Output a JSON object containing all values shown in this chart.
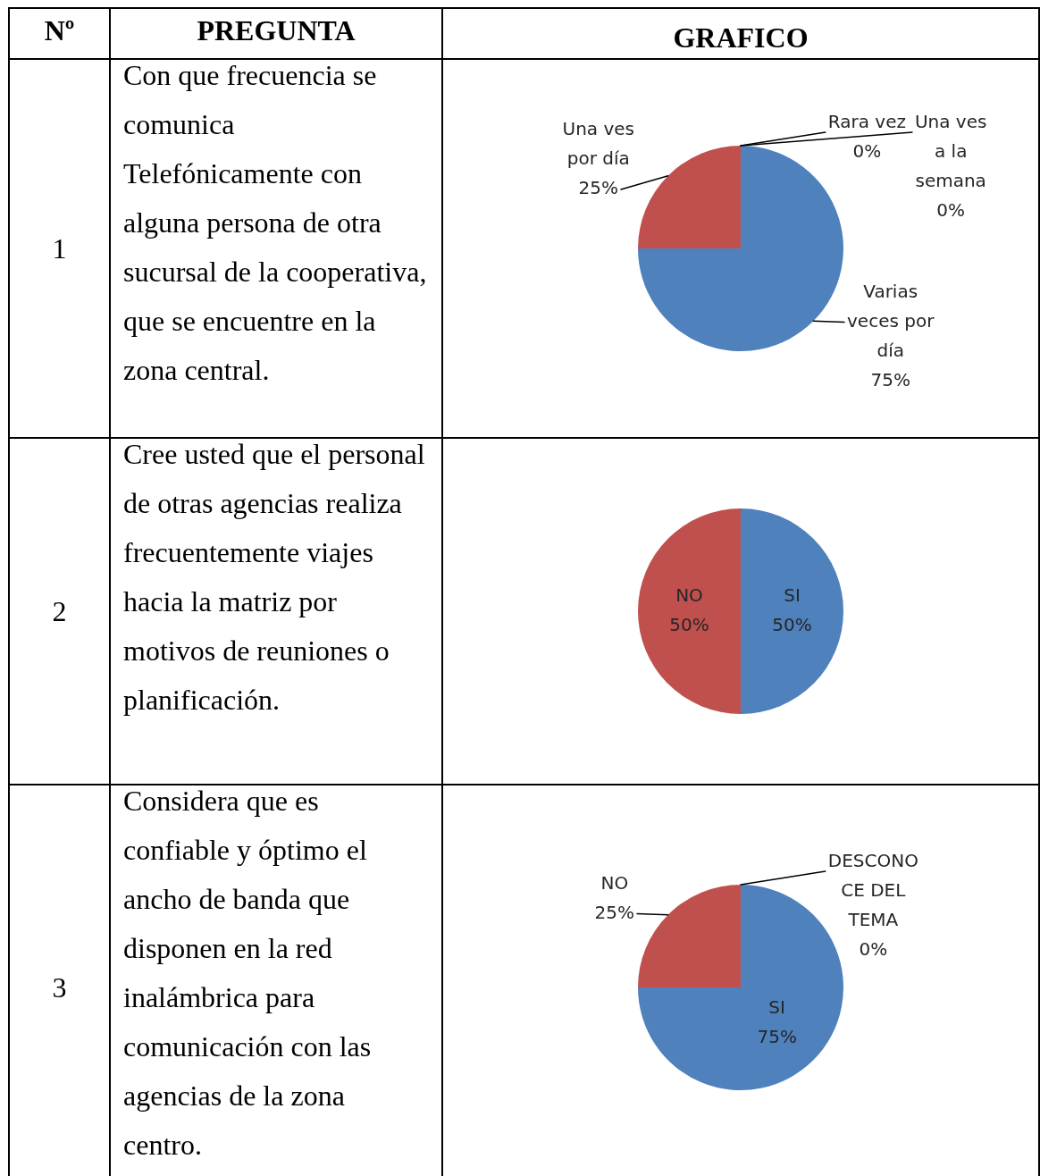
{
  "chart_data": [
    {
      "type": "pie",
      "title": "Con que frecuencia se comunica Telefónicamente con alguna persona de otra sucursal de la cooperativa, que se encuentre en la zona central.",
      "annotations": [
        "Nº",
        "PREGUNTA",
        "GRAFICO",
        "1"
      ],
      "categories": [
        "Varias veces por día",
        "Una ves por día",
        "Rara vez",
        "Una ves a la semana"
      ],
      "values": [
        75,
        25,
        0,
        0
      ],
      "colors": [
        "#4f81bd",
        "#c0504d",
        "#9bbb59",
        "#8064a2"
      ],
      "value_labels": [
        "75%",
        "25%",
        "0%",
        "0%"
      ]
    },
    {
      "type": "pie",
      "title": "Cree usted que el personal de otras agencias realiza frecuentemente viajes hacia la matriz por motivos de reuniones o planificación.",
      "annotations": [
        "2"
      ],
      "categories": [
        "SI",
        "NO"
      ],
      "values": [
        50,
        50
      ],
      "colors": [
        "#4f81bd",
        "#c0504d"
      ],
      "value_labels": [
        "50%",
        "50%"
      ]
    },
    {
      "type": "pie",
      "title": "Considera que es confiable y óptimo el ancho de banda que disponen en la red inalámbrica para comunicación con las agencias de la zona centro.",
      "annotations": [
        "3"
      ],
      "categories": [
        "SI",
        "NO",
        "DESCONOCE DEL TEMA"
      ],
      "values": [
        75,
        25,
        0
      ],
      "colors": [
        "#4f81bd",
        "#c0504d",
        "#9bbb59"
      ],
      "value_labels": [
        "75%",
        "25%",
        "0%"
      ]
    }
  ]
}
